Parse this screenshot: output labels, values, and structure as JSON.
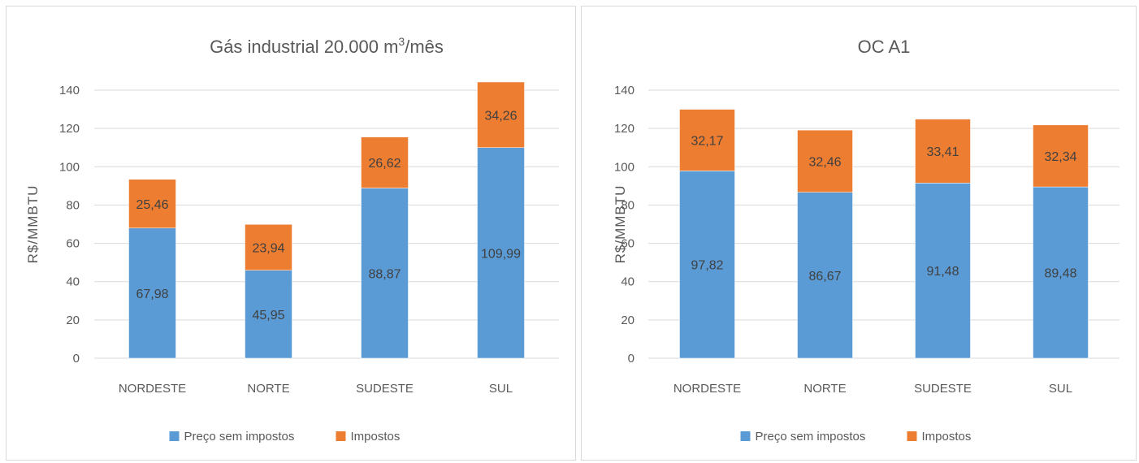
{
  "chart_data": [
    {
      "type": "bar",
      "stacked": true,
      "title": "Gás industrial 20.000 m",
      "title_sup": "3",
      "title_suffix": "/mês",
      "xlabel": "",
      "ylabel": "R$/MMBTU",
      "categories": [
        "NORDESTE",
        "NORTE",
        "SUDESTE",
        "SUL"
      ],
      "series": [
        {
          "name": "Preço sem impostos",
          "values": [
            67.98,
            45.95,
            88.87,
            109.99
          ],
          "labels": [
            "67,98",
            "45,95",
            "88,87",
            "109,99"
          ],
          "color": "#5b9bd5"
        },
        {
          "name": "Impostos",
          "values": [
            25.46,
            23.94,
            26.62,
            34.26
          ],
          "labels": [
            "25,46",
            "23,94",
            "26,62",
            "34,26"
          ],
          "color": "#ed7d31"
        }
      ],
      "ylim": [
        0,
        140
      ],
      "yticks": [
        0,
        20,
        40,
        60,
        80,
        100,
        120,
        140
      ],
      "grid": true,
      "legend": "bottom"
    },
    {
      "type": "bar",
      "stacked": true,
      "title": "OC A1",
      "xlabel": "",
      "ylabel": "R$/MMBTU",
      "categories": [
        "NORDESTE",
        "NORTE",
        "SUDESTE",
        "SUL"
      ],
      "series": [
        {
          "name": "Preço sem impostos",
          "values": [
            97.82,
            86.67,
            91.48,
            89.48
          ],
          "labels": [
            "97,82",
            "86,67",
            "91,48",
            "89,48"
          ],
          "color": "#5b9bd5"
        },
        {
          "name": "Impostos",
          "values": [
            32.17,
            32.46,
            33.41,
            32.34
          ],
          "labels": [
            "32,17",
            "32,46",
            "33,41",
            "32,34"
          ],
          "color": "#ed7d31"
        }
      ],
      "ylim": [
        0,
        140
      ],
      "yticks": [
        0,
        20,
        40,
        60,
        80,
        100,
        120,
        140
      ],
      "grid": true,
      "legend": "bottom"
    }
  ]
}
